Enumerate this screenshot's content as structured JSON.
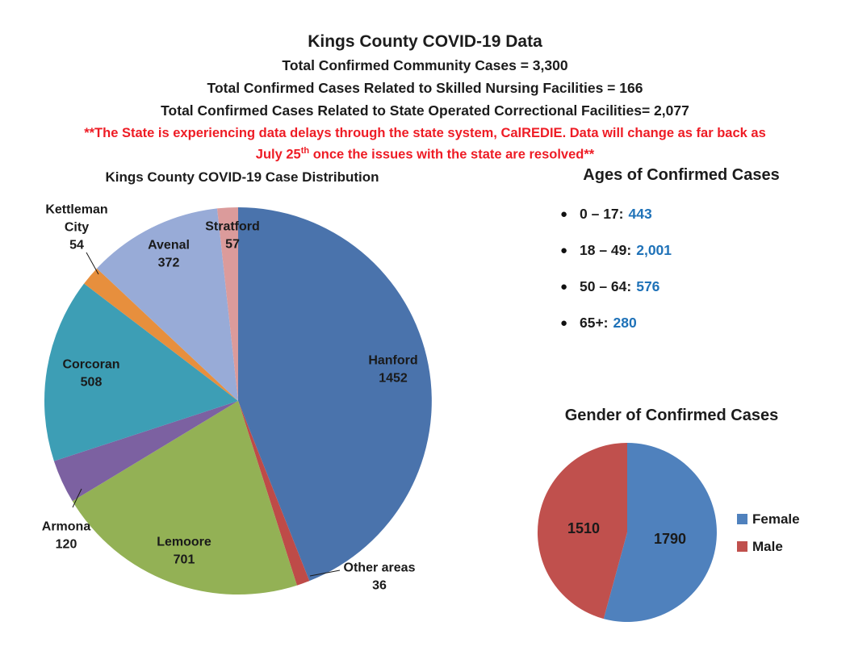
{
  "header": {
    "title": "Kings County COVID-19 Data",
    "totals": [
      "Total Confirmed Community Cases = 3,300",
      "Total Confirmed Cases Related to Skilled Nursing Facilities = 166",
      "Total Confirmed Cases Related to State Operated Correctional Facilities= 2,077"
    ],
    "warning_line1": "**The State is experiencing data delays through the state system, CalREDIE. Data will change as far back as",
    "warning_line2_pre": "July 25",
    "warning_sup": "th",
    "warning_line2_post": " once the issues with the state are resolved**",
    "warning_color": "#ee1c25"
  },
  "ages": {
    "heading": "Ages of Confirmed Cases",
    "value_color": "#1f72b8",
    "items": [
      {
        "range": "0 – 17:",
        "value": "443"
      },
      {
        "range": "18 – 49:",
        "value": "2,001"
      },
      {
        "range": "50 – 64:",
        "value": "576"
      },
      {
        "range": "65+:",
        "value": "280"
      }
    ]
  },
  "chart_data": [
    {
      "type": "pie",
      "title": "Kings County COVID-19 Case Distribution",
      "total": 3300,
      "start_angle_deg": 0,
      "direction": "clockwise",
      "slices": [
        {
          "label": "Hanford",
          "value": 1452,
          "color": "#4a73ac"
        },
        {
          "label": "Other areas",
          "value": 36,
          "color": "#be4b48"
        },
        {
          "label": "Lemoore",
          "value": 701,
          "color": "#93b155"
        },
        {
          "label": "Armona",
          "value": 120,
          "color": "#7c61a1"
        },
        {
          "label": "Corcoran",
          "value": 508,
          "color": "#3d9eb5"
        },
        {
          "label": "Kettleman City",
          "value": 54,
          "color": "#e78f3d"
        },
        {
          "label": "Avenal",
          "value": 372,
          "color": "#98abd7"
        },
        {
          "label": "Stratford",
          "value": 57,
          "color": "#db9b9b"
        }
      ]
    },
    {
      "type": "pie",
      "title": "Gender of Confirmed Cases",
      "total": 3300,
      "start_angle_deg": 0,
      "direction": "clockwise",
      "legend_position": "right",
      "slices": [
        {
          "label": "Female",
          "value": 1790,
          "color": "#4f81bd"
        },
        {
          "label": "Male",
          "value": 1510,
          "color": "#c0504d"
        }
      ]
    }
  ]
}
